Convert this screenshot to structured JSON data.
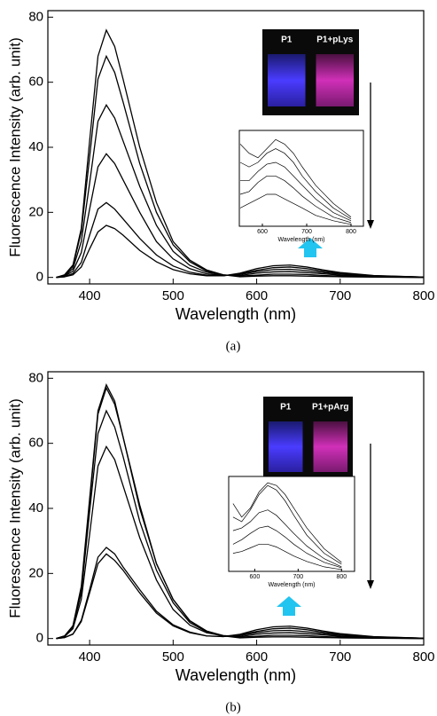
{
  "chart_data": [
    {
      "type": "line",
      "xlabel": "Wavelength (nm)",
      "ylabel": "Fluorescence Intensity (arb. unit)",
      "caption": "(a)",
      "xlim": [
        350,
        800
      ],
      "ylim": [
        -2,
        82
      ],
      "xticks": [
        400,
        500,
        600,
        700,
        800
      ],
      "yticks": [
        0,
        20,
        40,
        60,
        80
      ],
      "x": [
        360,
        370,
        380,
        390,
        400,
        410,
        420,
        430,
        440,
        460,
        480,
        500,
        520,
        540,
        560,
        580,
        600,
        620,
        640,
        660,
        680,
        700,
        740,
        800
      ],
      "series": [
        {
          "color": "#000000",
          "values": [
            0,
            0.8,
            3.8,
            15,
            42,
            68,
            76,
            71,
            61,
            40,
            23,
            11,
            5.3,
            2.3,
            0.8,
            0.2,
            0.4,
            0.5,
            0.5,
            0.4,
            0.3,
            0.2,
            0.1,
            0
          ]
        },
        {
          "color": "#000000",
          "values": [
            0,
            0.7,
            3.4,
            14,
            37,
            61,
            68,
            63,
            54,
            35,
            20,
            10,
            4.8,
            2,
            0.8,
            0.4,
            0.7,
            1,
            1,
            0.9,
            0.6,
            0.4,
            0.2,
            0
          ]
        },
        {
          "color": "#000000",
          "values": [
            0,
            0.5,
            2.7,
            11,
            29,
            48,
            53,
            49,
            42,
            28,
            16,
            8,
            3.7,
            1.6,
            0.7,
            0.6,
            1.3,
            1.7,
            1.8,
            1.5,
            1.1,
            0.7,
            0.3,
            0.1
          ]
        },
        {
          "color": "#000000",
          "values": [
            0,
            0.4,
            1.9,
            7.6,
            21,
            34,
            38,
            35,
            30,
            20,
            11,
            5.7,
            2.7,
            1.1,
            0.6,
            0.9,
            1.8,
            2.4,
            2.5,
            2.1,
            1.5,
            1,
            0.4,
            0.1
          ]
        },
        {
          "color": "#000000",
          "values": [
            0,
            0.2,
            1.2,
            4.6,
            13,
            21,
            23,
            21,
            18,
            12,
            6.9,
            3.5,
            1.6,
            0.7,
            0.5,
            1.1,
            2.2,
            3,
            3.2,
            2.7,
            1.9,
            1.3,
            0.5,
            0.1
          ]
        },
        {
          "color": "#000000",
          "values": [
            0,
            0.2,
            0.8,
            3.2,
            8.8,
            14,
            16,
            15,
            13,
            8.3,
            4.8,
            2.4,
            1.1,
            0.5,
            0.5,
            1.3,
            2.7,
            3.6,
            3.8,
            3.2,
            2.3,
            1.5,
            0.6,
            0.1
          ]
        }
      ],
      "photo_labels": [
        "P1",
        "P1+pLys"
      ],
      "inset": {
        "xlabel": "Wavelength (nm)",
        "xlim": [
          548,
          828
        ],
        "ylim": [
          0,
          1.05
        ],
        "xticks": [
          600,
          700,
          800
        ],
        "x": [
          550,
          570,
          590,
          610,
          630,
          650,
          670,
          690,
          720,
          760,
          800
        ],
        "series": [
          {
            "color": "#000000",
            "values": [
              0.9,
              0.8,
              0.75,
              0.85,
              0.95,
              0.9,
              0.8,
              0.65,
              0.45,
              0.25,
              0.1
            ]
          },
          {
            "color": "#000000",
            "values": [
              0.7,
              0.65,
              0.7,
              0.8,
              0.85,
              0.8,
              0.7,
              0.55,
              0.38,
              0.2,
              0.08
            ]
          },
          {
            "color": "#000000",
            "values": [
              0.5,
              0.5,
              0.6,
              0.68,
              0.7,
              0.65,
              0.55,
              0.45,
              0.3,
              0.15,
              0.06
            ]
          },
          {
            "color": "#000000",
            "values": [
              0.35,
              0.38,
              0.48,
              0.55,
              0.55,
              0.5,
              0.42,
              0.33,
              0.22,
              0.1,
              0.04
            ]
          },
          {
            "color": "#000000",
            "values": [
              0.2,
              0.25,
              0.3,
              0.35,
              0.35,
              0.3,
              0.25,
              0.2,
              0.12,
              0.06,
              0.02
            ]
          }
        ]
      }
    },
    {
      "type": "line",
      "xlabel": "Wavelength (nm)",
      "ylabel": "Fluorescence Intensity (arb. unit)",
      "caption": "(b)",
      "xlim": [
        350,
        800
      ],
      "ylim": [
        -2,
        82
      ],
      "xticks": [
        400,
        500,
        600,
        700,
        800
      ],
      "yticks": [
        0,
        20,
        40,
        60,
        80
      ],
      "x": [
        360,
        370,
        380,
        390,
        400,
        410,
        420,
        430,
        440,
        460,
        480,
        500,
        520,
        540,
        560,
        580,
        600,
        620,
        640,
        660,
        680,
        700,
        740,
        800
      ],
      "series": [
        {
          "color": "#000000",
          "values": [
            0,
            0.8,
            3.9,
            16,
            43,
            70,
            78,
            73,
            62,
            41,
            23,
            12,
            5.5,
            2.3,
            0.8,
            0.2,
            0.4,
            0.5,
            0.5,
            0.4,
            0.3,
            0.2,
            0.1,
            0
          ]
        },
        {
          "color": "#000000",
          "values": [
            0,
            0.8,
            3.9,
            15,
            42,
            69,
            77,
            72,
            62,
            40,
            23,
            12,
            5.4,
            2.3,
            0.9,
            0.4,
            0.7,
            1,
            1,
            0.9,
            0.6,
            0.4,
            0.2,
            0
          ]
        },
        {
          "color": "#000000",
          "values": [
            0,
            0.7,
            3.5,
            14,
            39,
            63,
            70,
            65,
            56,
            36,
            21,
            11,
            4.9,
            2.1,
            0.9,
            0.6,
            1.3,
            1.7,
            1.8,
            1.5,
            1.1,
            0.7,
            0.3,
            0.1
          ]
        },
        {
          "color": "#000000",
          "values": [
            0,
            0.6,
            3,
            12,
            32,
            53,
            59,
            55,
            47,
            31,
            18,
            8.9,
            4.1,
            1.8,
            0.8,
            0.9,
            1.8,
            2.4,
            2.5,
            2.1,
            1.5,
            1,
            0.4,
            0.1
          ]
        },
        {
          "color": "#000000",
          "values": [
            0,
            0.3,
            1.4,
            5.6,
            15,
            25,
            28,
            26,
            22,
            15,
            8.4,
            4.2,
            2,
            0.8,
            0.6,
            1.1,
            2.2,
            3,
            3.2,
            2.7,
            1.9,
            1.3,
            0.5,
            0.1
          ]
        },
        {
          "color": "#000000",
          "values": [
            0,
            0.3,
            1.3,
            5.2,
            14,
            23,
            26,
            24,
            21,
            14,
            7.8,
            3.9,
            1.8,
            0.8,
            0.6,
            1.3,
            2.7,
            3.6,
            3.8,
            3.2,
            2.3,
            1.5,
            0.6,
            0.1
          ]
        }
      ],
      "photo_labels": [
        "P1",
        "P1+pArg"
      ],
      "inset": {
        "xlabel": "Wavelength (nm)",
        "xlim": [
          540,
          830
        ],
        "ylim": [
          0,
          1.05
        ],
        "xticks": [
          600,
          700,
          800
        ],
        "x": [
          550,
          570,
          590,
          610,
          630,
          650,
          670,
          690,
          720,
          760,
          800
        ],
        "series": [
          {
            "color": "#000000",
            "values": [
              0.75,
              0.6,
              0.7,
              0.88,
              0.98,
              0.95,
              0.85,
              0.7,
              0.48,
              0.25,
              0.1
            ]
          },
          {
            "color": "#000000",
            "values": [
              0.6,
              0.55,
              0.68,
              0.85,
              0.95,
              0.9,
              0.78,
              0.62,
              0.4,
              0.2,
              0.08
            ]
          },
          {
            "color": "#000000",
            "values": [
              0.45,
              0.48,
              0.55,
              0.65,
              0.68,
              0.62,
              0.52,
              0.42,
              0.28,
              0.14,
              0.05
            ]
          },
          {
            "color": "#000000",
            "values": [
              0.3,
              0.35,
              0.42,
              0.48,
              0.5,
              0.45,
              0.38,
              0.3,
              0.2,
              0.1,
              0.04
            ]
          },
          {
            "color": "#000000",
            "values": [
              0.2,
              0.22,
              0.26,
              0.3,
              0.3,
              0.27,
              0.22,
              0.17,
              0.11,
              0.05,
              0.02
            ]
          }
        ]
      }
    }
  ]
}
